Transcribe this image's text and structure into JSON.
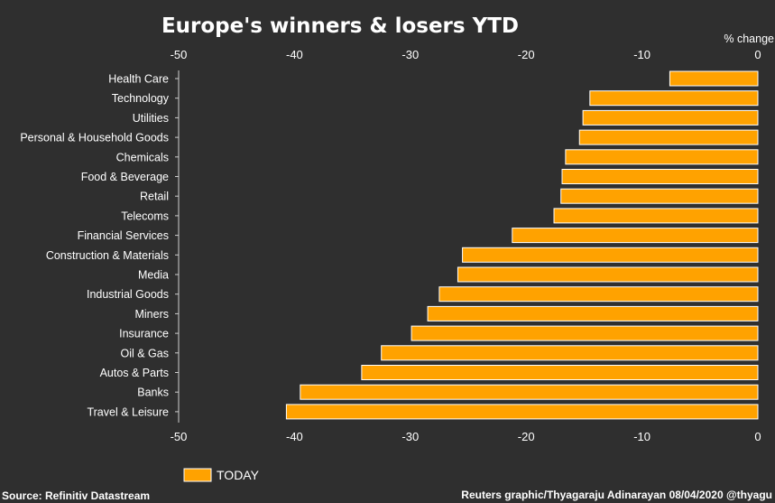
{
  "chart_data": {
    "type": "bar",
    "orientation": "horizontal",
    "title": "Europe's winners & losers YTD",
    "unit_label": "% change",
    "xlim": [
      -50,
      0
    ],
    "ticks": [
      -50,
      -40,
      -30,
      -20,
      -10,
      0
    ],
    "tick_labels": [
      "-50",
      "-40",
      "-30",
      "-20",
      "-10",
      "0"
    ],
    "categories": [
      "Health Care",
      "Technology",
      "Utilities",
      "Personal & Household Goods",
      "Chemicals",
      "Food & Beverage",
      "Retail",
      "Telecoms",
      "Financial Services",
      "Construction & Materials",
      "Media",
      "Industrial Goods",
      "Miners",
      "Insurance",
      "Oil & Gas",
      "Autos & Parts",
      "Banks",
      "Travel & Leisure"
    ],
    "series": [
      {
        "name": "TODAY",
        "color": "#ffa200",
        "values": [
          -7.6,
          -14.5,
          -15.1,
          -15.4,
          -16.6,
          -16.9,
          -17.0,
          -17.6,
          -21.2,
          -25.5,
          -25.9,
          -27.5,
          -28.5,
          -29.9,
          -32.5,
          -34.2,
          -39.5,
          -40.7
        ]
      }
    ],
    "legend": "bottom-left"
  },
  "footer": {
    "source": "Source: Refinitiv Datastream",
    "credit": "Reuters graphic/Thyagaraju Adinarayan 08/04/2020 @thyagu"
  },
  "colors": {
    "background": "#2f2f2f",
    "bar": "#ffa200",
    "text": "#ffffff"
  }
}
